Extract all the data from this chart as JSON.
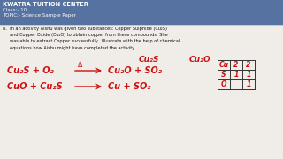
{
  "header_bg": "#5572a0",
  "header_text_color": "#ffffff",
  "header_line1": "KWATRA TUITION CENTER",
  "header_line2": "Class:- 10",
  "header_line3": "TOPIC:- Science Sample Paper",
  "body_bg": "#f0ede8",
  "question_color": "#111111",
  "eq_color": "#cc1111",
  "label1": "Cu₂S",
  "label2": "Cu₂O",
  "eq1_left": "Cu₂S + O₂",
  "eq1_heat": "Δ",
  "eq1_right": "Cu₂O + SO₂",
  "eq2_left": "CuO + Cu₂S",
  "eq2_right": "Cu + SO₂",
  "table_cells": [
    [
      "Cu",
      "2",
      "2"
    ],
    [
      "S",
      "1",
      "1"
    ],
    [
      "O",
      "",
      "1"
    ]
  ]
}
